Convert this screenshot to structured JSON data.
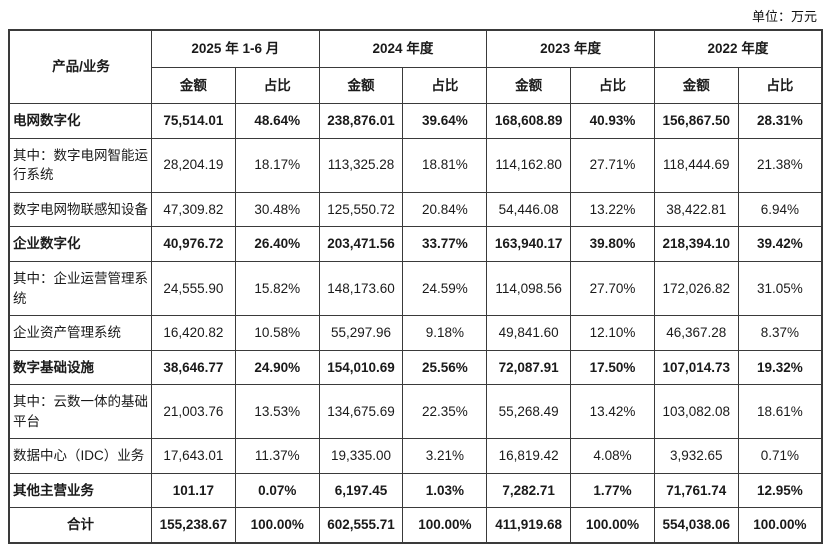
{
  "unit_label": "单位：万元",
  "table": {
    "col_group_header": "产品/业务",
    "periods": [
      "2025 年 1-6 月",
      "2024 年度",
      "2023 年度",
      "2022 年度"
    ],
    "subheaders": [
      "金额",
      "占比"
    ],
    "rows": [
      {
        "label": "电网数字化",
        "bold": true,
        "center": false,
        "values": [
          "75,514.01",
          "48.64%",
          "238,876.01",
          "39.64%",
          "168,608.89",
          "40.93%",
          "156,867.50",
          "28.31%"
        ]
      },
      {
        "label": "其中：数字电网智能运行系统",
        "bold": false,
        "center": false,
        "values": [
          "28,204.19",
          "18.17%",
          "113,325.28",
          "18.81%",
          "114,162.80",
          "27.71%",
          "118,444.69",
          "21.38%"
        ]
      },
      {
        "label": "数字电网物联感知设备",
        "bold": false,
        "center": false,
        "values": [
          "47,309.82",
          "30.48%",
          "125,550.72",
          "20.84%",
          "54,446.08",
          "13.22%",
          "38,422.81",
          "6.94%"
        ]
      },
      {
        "label": "企业数字化",
        "bold": true,
        "center": false,
        "values": [
          "40,976.72",
          "26.40%",
          "203,471.56",
          "33.77%",
          "163,940.17",
          "39.80%",
          "218,394.10",
          "39.42%"
        ]
      },
      {
        "label": "其中：企业运营管理系统",
        "bold": false,
        "center": false,
        "values": [
          "24,555.90",
          "15.82%",
          "148,173.60",
          "24.59%",
          "114,098.56",
          "27.70%",
          "172,026.82",
          "31.05%"
        ]
      },
      {
        "label": "企业资产管理系统",
        "bold": false,
        "center": false,
        "values": [
          "16,420.82",
          "10.58%",
          "55,297.96",
          "9.18%",
          "49,841.60",
          "12.10%",
          "46,367.28",
          "8.37%"
        ]
      },
      {
        "label": "数字基础设施",
        "bold": true,
        "center": false,
        "values": [
          "38,646.77",
          "24.90%",
          "154,010.69",
          "25.56%",
          "72,087.91",
          "17.50%",
          "107,014.73",
          "19.32%"
        ]
      },
      {
        "label": "其中：云数一体的基础平台",
        "bold": false,
        "center": false,
        "values": [
          "21,003.76",
          "13.53%",
          "134,675.69",
          "22.35%",
          "55,268.49",
          "13.42%",
          "103,082.08",
          "18.61%"
        ]
      },
      {
        "label": "数据中心（IDC）业务",
        "bold": false,
        "center": false,
        "values": [
          "17,643.01",
          "11.37%",
          "19,335.00",
          "3.21%",
          "16,819.42",
          "4.08%",
          "3,932.65",
          "0.71%"
        ]
      },
      {
        "label": "其他主营业务",
        "bold": true,
        "center": false,
        "values": [
          "101.17",
          "0.07%",
          "6,197.45",
          "1.03%",
          "7,282.71",
          "1.77%",
          "71,761.74",
          "12.95%"
        ]
      },
      {
        "label": "合计",
        "bold": true,
        "center": true,
        "values": [
          "155,238.67",
          "100.00%",
          "602,555.71",
          "100.00%",
          "411,919.68",
          "100.00%",
          "554,038.06",
          "100.00%"
        ]
      }
    ]
  }
}
